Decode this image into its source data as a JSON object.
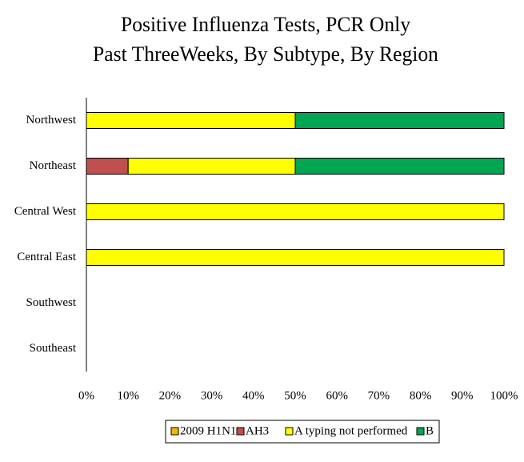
{
  "chart_data": {
    "type": "stacked-bar-horizontal",
    "title": [
      "Positive Influenza  Tests, PCR Only",
      "Past ThreeWeeks, By Subtype, By Region"
    ],
    "categories": [
      "Northwest",
      "Northeast",
      "Central West",
      "Central East",
      "Southwest",
      "Southeast"
    ],
    "series": [
      {
        "name": "2009 H1N1",
        "color": "#f5b800",
        "values": [
          0,
          0,
          0,
          0,
          0,
          0
        ]
      },
      {
        "name": "AH3",
        "color": "#c0504d",
        "values": [
          0,
          10,
          0,
          0,
          0,
          0
        ]
      },
      {
        "name": "A typing not performed",
        "color": "#ffff00",
        "values": [
          50,
          40,
          100,
          100,
          0,
          0
        ]
      },
      {
        "name": "B",
        "color": "#00a651",
        "values": [
          50,
          50,
          0,
          0,
          0,
          0
        ]
      }
    ],
    "xlim": [
      0,
      100
    ],
    "xticks": [
      {
        "value": 0,
        "label": "0%"
      },
      {
        "value": 10,
        "label": "10%"
      },
      {
        "value": 20,
        "label": "20%"
      },
      {
        "value": 30,
        "label": "30%"
      },
      {
        "value": 40,
        "label": "40%"
      },
      {
        "value": 50,
        "label": "50%"
      },
      {
        "value": 60,
        "label": "60%"
      },
      {
        "value": 70,
        "label": "70%"
      },
      {
        "value": 80,
        "label": "80%"
      },
      {
        "value": 90,
        "label": "90%"
      },
      {
        "value": 100,
        "label": "100%"
      }
    ],
    "legend": "bottom"
  }
}
